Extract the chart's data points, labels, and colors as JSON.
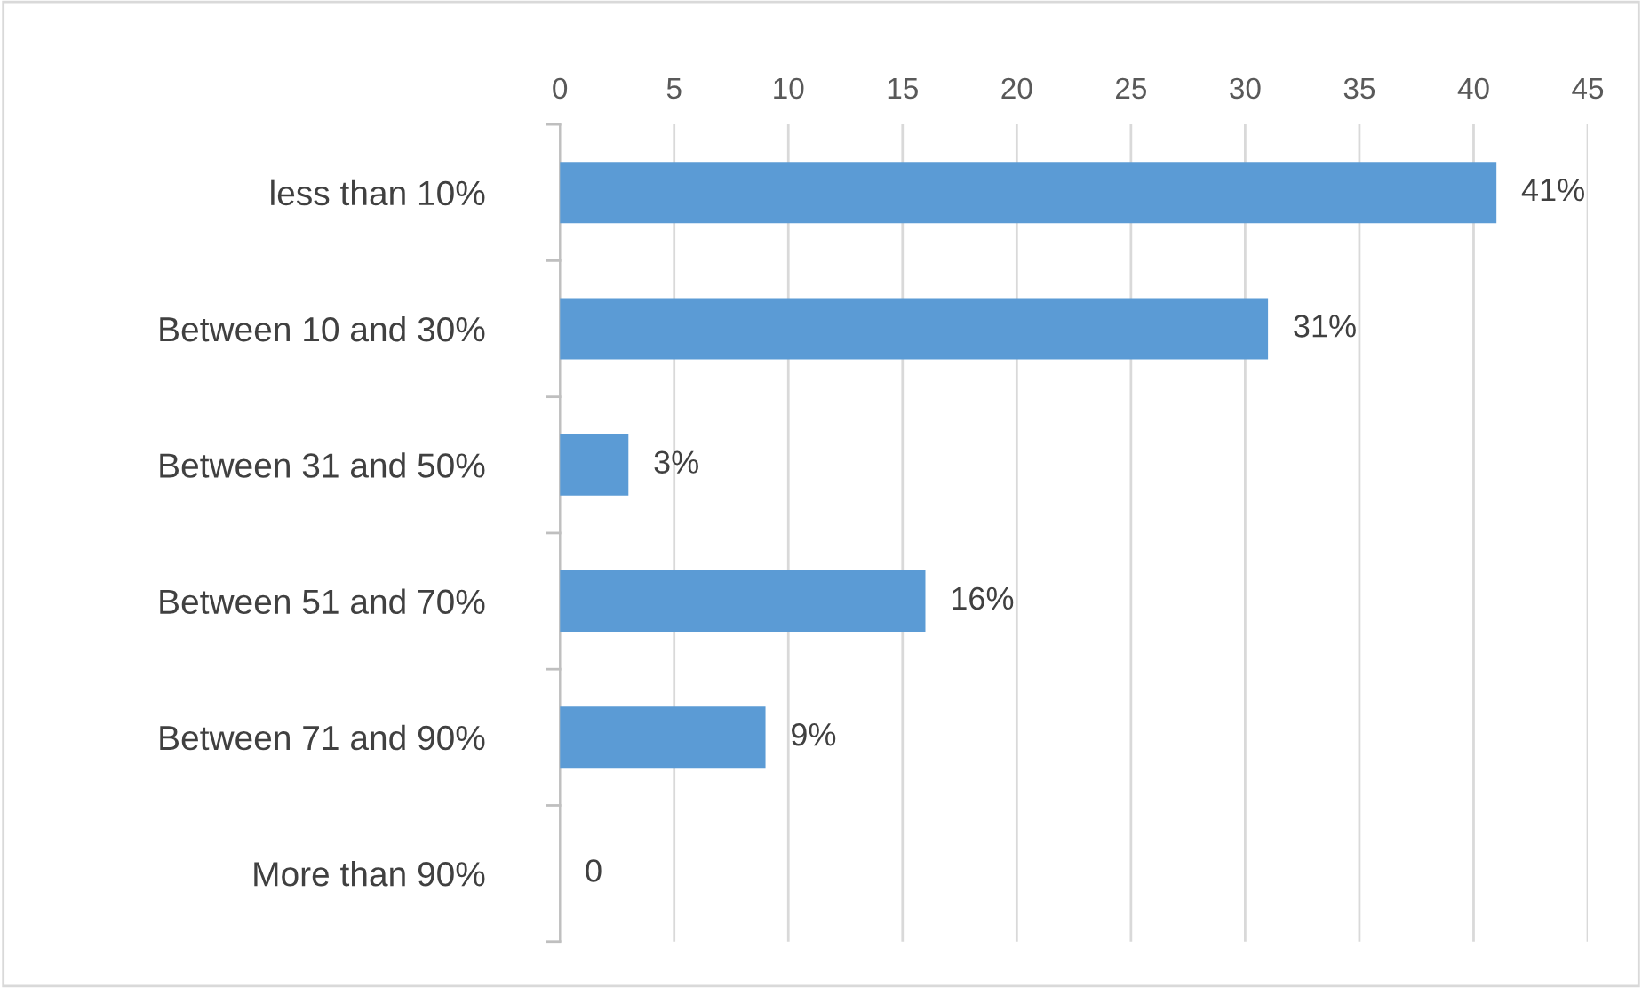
{
  "chart_data": {
    "type": "bar",
    "orientation": "horizontal",
    "categories": [
      "less than 10%",
      "Between 10 and 30%",
      "Between 31 and 50%",
      "Between 51 and 70%",
      "Between 71 and 90%",
      "More than 90%"
    ],
    "values": [
      41,
      31,
      3,
      16,
      9,
      0
    ],
    "value_labels": [
      "41%",
      "31%",
      "3%",
      "16%",
      "9%",
      "0"
    ],
    "color": "#5b9bd5",
    "xlim": [
      0,
      45
    ],
    "xticks": [
      0,
      5,
      10,
      15,
      20,
      25,
      30,
      35,
      40,
      45
    ],
    "grid": "x",
    "legend": false
  }
}
